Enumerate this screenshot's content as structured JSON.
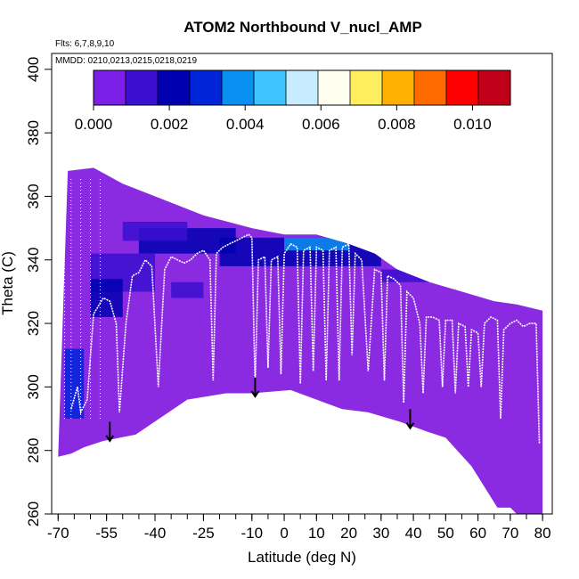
{
  "chart_data": {
    "type": "heatmap",
    "title": "ATOM2 Northbound V_nucl_AMP",
    "annotations": [
      "Flts: 6,7,8,9,10",
      "MMDD: 0210,0213,0215,0218,0219"
    ],
    "xlabel": "Latitude (deg N)",
    "ylabel": "Theta (C)",
    "xlim": [
      -72,
      83
    ],
    "ylim": [
      260,
      405
    ],
    "xticks": [
      -70,
      -55,
      -40,
      -25,
      -10,
      0,
      10,
      20,
      30,
      40,
      50,
      60,
      70,
      80
    ],
    "xtick_labels": [
      "-70",
      "-55",
      "-40",
      "-25",
      "-10",
      "0",
      "10",
      "20",
      "30",
      "40",
      "50",
      "60",
      "70",
      "80"
    ],
    "yticks": [
      260,
      280,
      300,
      320,
      340,
      360,
      380,
      400
    ],
    "ytick_labels": [
      "260",
      "280",
      "300",
      "320",
      "340",
      "360",
      "380",
      "400"
    ],
    "colorbar": {
      "range": [
        0,
        0.011
      ],
      "tick_values": [
        0,
        0.002,
        0.004,
        0.006,
        0.008,
        0.01
      ],
      "tick_labels": [
        "0.000",
        "0.002",
        "0.004",
        "0.006",
        "0.008",
        "0.010"
      ],
      "colors": [
        "#7b1fe6",
        "#3a0fd0",
        "#0000b0",
        "#0024d8",
        "#0a90f0",
        "#40c4ff",
        "#c8ecff",
        "#fffff0",
        "#ffee60",
        "#ffb000",
        "#ff6a00",
        "#ff0000",
        "#c00018"
      ]
    },
    "fill_color": "#8a2be2",
    "data_region": {
      "top": [
        [
          -67,
          368
        ],
        [
          -59,
          369
        ],
        [
          -50,
          364
        ],
        [
          -40,
          360
        ],
        [
          -25,
          354
        ],
        [
          -10,
          350
        ],
        [
          0,
          348
        ],
        [
          10,
          348
        ],
        [
          20,
          345
        ],
        [
          28,
          342
        ],
        [
          35,
          337
        ],
        [
          45,
          333
        ],
        [
          55,
          330
        ],
        [
          65,
          327
        ],
        [
          72,
          326
        ],
        [
          80,
          324
        ]
      ],
      "bottom": [
        [
          80,
          260
        ],
        [
          72,
          260
        ],
        [
          70,
          262
        ],
        [
          66,
          262
        ],
        [
          58,
          275
        ],
        [
          50,
          284
        ],
        [
          44,
          286
        ],
        [
          36,
          289
        ],
        [
          26,
          292
        ],
        [
          18,
          293
        ],
        [
          10,
          296
        ],
        [
          2,
          299
        ],
        [
          -10,
          298
        ],
        [
          -18,
          298
        ],
        [
          -30,
          296
        ],
        [
          -46,
          285
        ],
        [
          -56,
          283
        ],
        [
          -62,
          281
        ],
        [
          -66,
          279
        ],
        [
          -70,
          278
        ]
      ]
    },
    "dark_bands": [
      {
        "x": [
          -45,
          -15
        ],
        "y": [
          342,
          350
        ],
        "level": 0.002
      },
      {
        "x": [
          -50,
          -30
        ],
        "y": [
          346,
          352
        ],
        "level": 0.0015
      },
      {
        "x": [
          -20,
          30
        ],
        "y": [
          338,
          347
        ],
        "level": 0.0025
      },
      {
        "x": [
          0,
          20
        ],
        "y": [
          343,
          347
        ],
        "level": 0.004
      },
      {
        "x": [
          -60,
          -40
        ],
        "y": [
          330,
          342
        ],
        "level": 0.0015
      },
      {
        "x": [
          -68,
          -62
        ],
        "y": [
          290,
          312
        ],
        "level": 0.003
      },
      {
        "x": [
          -60,
          -50
        ],
        "y": [
          322,
          334
        ],
        "level": 0.002
      },
      {
        "x": [
          -35,
          -25
        ],
        "y": [
          328,
          333
        ],
        "level": 0.0015
      },
      {
        "x": [
          30,
          45
        ],
        "y": [
          333,
          337
        ],
        "level": 0.0015
      }
    ],
    "flight_track": [
      [
        -66,
        293
      ],
      [
        -64,
        300
      ],
      [
        -63,
        292
      ],
      [
        -61,
        296
      ],
      [
        -59,
        323
      ],
      [
        -56,
        328
      ],
      [
        -54,
        327
      ],
      [
        -52,
        320
      ],
      [
        -51,
        292
      ],
      [
        -49,
        320
      ],
      [
        -47,
        335
      ],
      [
        -45,
        336
      ],
      [
        -43,
        340
      ],
      [
        -41,
        338
      ],
      [
        -39,
        300
      ],
      [
        -37,
        337
      ],
      [
        -35,
        341
      ],
      [
        -33,
        340
      ],
      [
        -31,
        339
      ],
      [
        -29,
        340
      ],
      [
        -27,
        342
      ],
      [
        -25,
        343
      ],
      [
        -23,
        340
      ],
      [
        -22,
        302
      ],
      [
        -21,
        342
      ],
      [
        -19,
        344
      ],
      [
        -17,
        345
      ],
      [
        -15,
        346
      ],
      [
        -13,
        347
      ],
      [
        -11,
        348
      ],
      [
        -10,
        347
      ],
      [
        -9,
        300
      ],
      [
        -8,
        340
      ],
      [
        -6,
        341
      ],
      [
        -5,
        306
      ],
      [
        -4,
        340
      ],
      [
        -2,
        341
      ],
      [
        -1,
        304
      ],
      [
        0,
        342
      ],
      [
        2,
        345
      ],
      [
        4,
        344
      ],
      [
        5,
        301
      ],
      [
        6,
        343
      ],
      [
        8,
        344
      ],
      [
        9,
        305
      ],
      [
        10,
        344
      ],
      [
        12,
        343
      ],
      [
        13,
        302
      ],
      [
        14,
        343
      ],
      [
        16,
        344
      ],
      [
        17,
        302
      ],
      [
        18,
        344
      ],
      [
        20,
        345
      ],
      [
        21,
        310
      ],
      [
        22,
        342
      ],
      [
        24,
        340
      ],
      [
        26,
        305
      ],
      [
        28,
        337
      ],
      [
        30,
        336
      ],
      [
        31,
        302
      ],
      [
        32,
        335
      ],
      [
        34,
        334
      ],
      [
        36,
        332
      ],
      [
        37,
        295
      ],
      [
        38,
        330
      ],
      [
        40,
        328
      ],
      [
        42,
        320
      ],
      [
        43,
        298
      ],
      [
        44,
        322
      ],
      [
        46,
        322
      ],
      [
        48,
        321
      ],
      [
        49,
        300
      ],
      [
        50,
        321
      ],
      [
        52,
        321
      ],
      [
        53,
        298
      ],
      [
        54,
        320
      ],
      [
        56,
        319
      ],
      [
        57,
        300
      ],
      [
        58,
        318
      ],
      [
        60,
        317
      ],
      [
        61,
        300
      ],
      [
        62,
        320
      ],
      [
        64,
        322
      ],
      [
        66,
        321
      ],
      [
        67,
        290
      ],
      [
        68,
        318
      ],
      [
        70,
        320
      ],
      [
        72,
        321
      ],
      [
        74,
        319
      ],
      [
        76,
        320
      ],
      [
        78,
        320
      ],
      [
        79,
        282
      ]
    ],
    "arrows": [
      {
        "x": -54,
        "y_from": 289,
        "y_to": 283
      },
      {
        "x": -9,
        "y_from": 303,
        "y_to": 297
      },
      {
        "x": 39,
        "y_from": 293,
        "y_to": 287
      }
    ]
  }
}
